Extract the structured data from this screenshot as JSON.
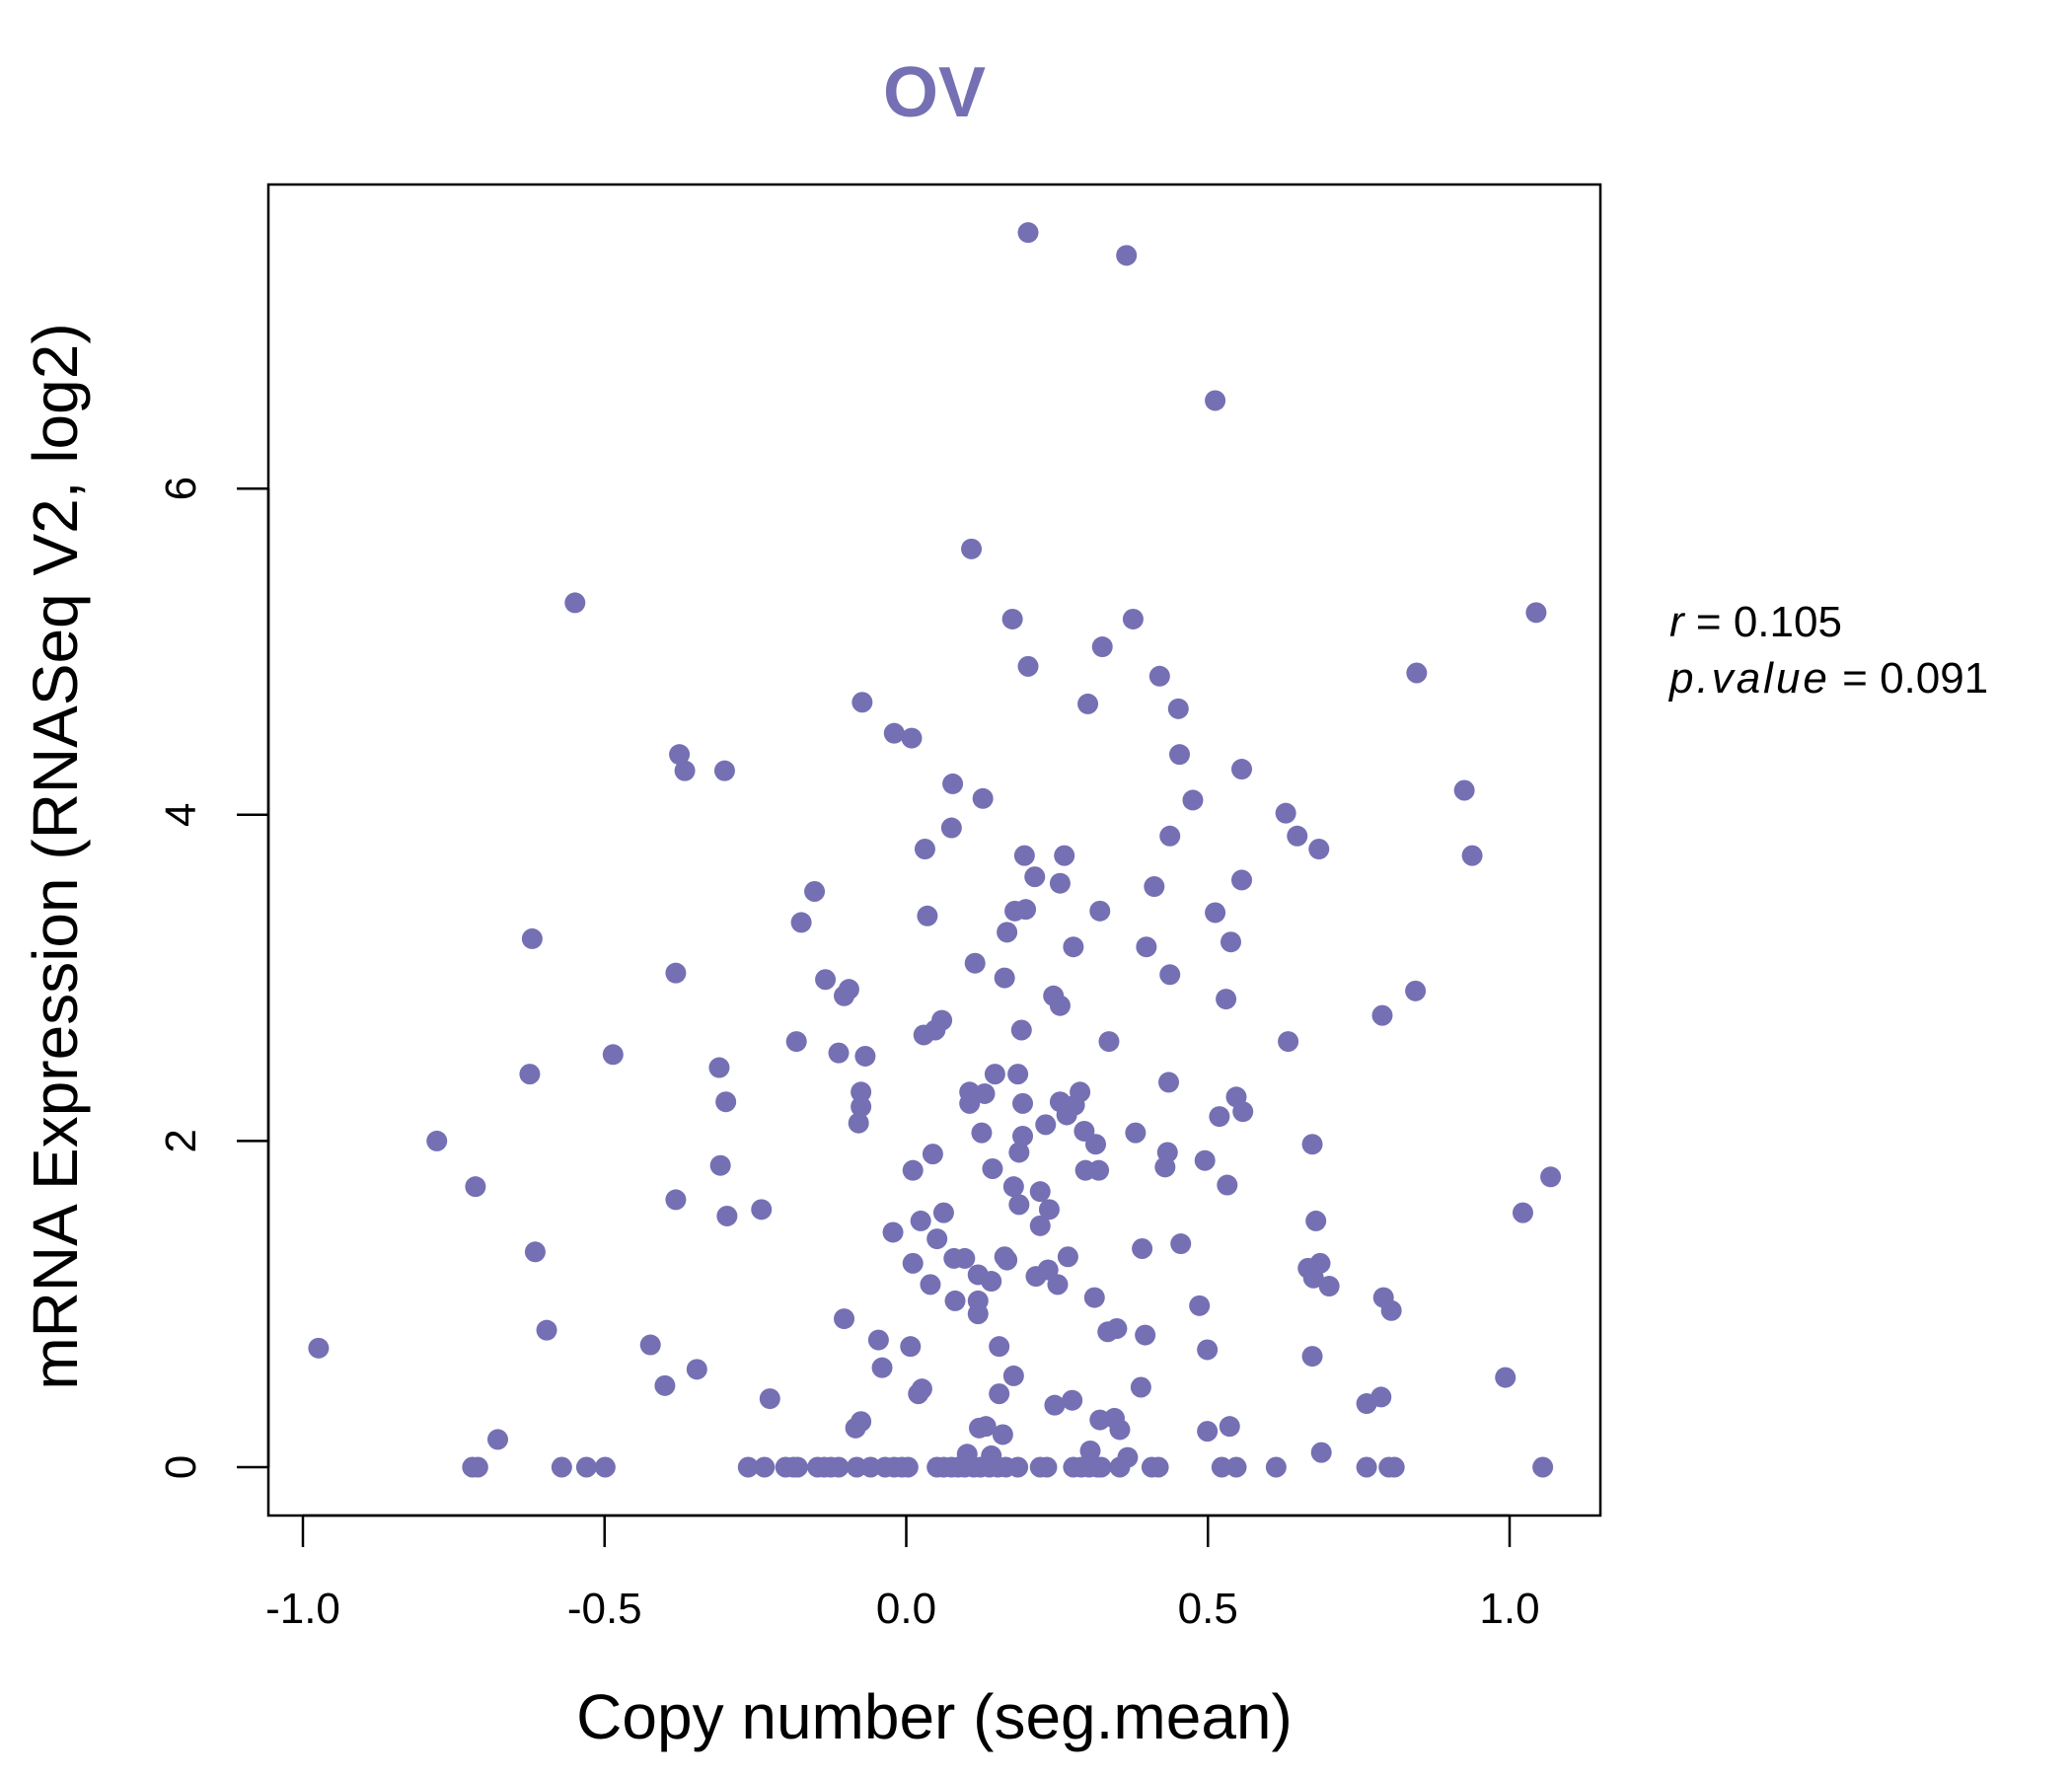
{
  "chart_data": {
    "type": "scatter",
    "title": "OV",
    "xlabel": "Copy number (seg.mean)",
    "ylabel": "mRNA Expression (RNASeq V2, log2)",
    "xlim": [
      -1.1,
      1.15
    ],
    "ylim": [
      -0.3,
      7.85
    ],
    "xticks": [
      -1.0,
      -0.5,
      0.0,
      0.5,
      1.0
    ],
    "xtick_labels": [
      "-1.0",
      "-0.5",
      "0.0",
      "0.5",
      "1.0"
    ],
    "yticks": [
      0,
      2,
      4,
      6
    ],
    "ytick_labels": [
      "0",
      "2",
      "4",
      "6"
    ],
    "grid": false,
    "point_color": "#7570b3",
    "annotation": {
      "r_label": "r",
      "r_value": "0.105",
      "p_label": "p.value",
      "p_value": "0.091",
      "eq": "="
    },
    "points": [
      [
        0.202,
        7.57
      ],
      [
        0.365,
        7.43
      ],
      [
        0.512,
        6.54
      ],
      [
        0.108,
        5.63
      ],
      [
        -0.549,
        5.3
      ],
      [
        0.176,
        5.2
      ],
      [
        0.376,
        5.2
      ],
      [
        1.044,
        5.24
      ],
      [
        0.325,
        5.03
      ],
      [
        0.202,
        4.91
      ],
      [
        0.846,
        4.87
      ],
      [
        0.42,
        4.85
      ],
      [
        -0.073,
        4.69
      ],
      [
        0.301,
        4.68
      ],
      [
        0.451,
        4.65
      ],
      [
        -0.02,
        4.5
      ],
      [
        0.009,
        4.47
      ],
      [
        -0.376,
        4.37
      ],
      [
        0.453,
        4.37
      ],
      [
        -0.367,
        4.27
      ],
      [
        -0.301,
        4.27
      ],
      [
        0.556,
        4.28
      ],
      [
        0.077,
        4.19
      ],
      [
        0.925,
        4.15
      ],
      [
        0.127,
        4.1
      ],
      [
        0.475,
        4.09
      ],
      [
        0.629,
        4.01
      ],
      [
        0.648,
        3.87
      ],
      [
        0.437,
        3.87
      ],
      [
        0.075,
        3.92
      ],
      [
        0.031,
        3.79
      ],
      [
        0.684,
        3.79
      ],
      [
        0.196,
        3.75
      ],
      [
        0.262,
        3.75
      ],
      [
        0.938,
        3.75
      ],
      [
        0.213,
        3.62
      ],
      [
        0.255,
        3.58
      ],
      [
        0.556,
        3.6
      ],
      [
        -0.152,
        3.53
      ],
      [
        0.411,
        3.56
      ],
      [
        -0.174,
        3.34
      ],
      [
        0.035,
        3.38
      ],
      [
        0.18,
        3.41
      ],
      [
        0.198,
        3.42
      ],
      [
        0.321,
        3.41
      ],
      [
        0.512,
        3.4
      ],
      [
        0.167,
        3.28
      ],
      [
        -0.62,
        3.24
      ],
      [
        0.538,
        3.22
      ],
      [
        0.277,
        3.19
      ],
      [
        0.398,
        3.19
      ],
      [
        0.114,
        3.09
      ],
      [
        -0.382,
        3.03
      ],
      [
        -0.134,
        2.99
      ],
      [
        0.163,
        3.0
      ],
      [
        0.437,
        3.02
      ],
      [
        -0.095,
        2.93
      ],
      [
        -0.103,
        2.89
      ],
      [
        0.844,
        2.92
      ],
      [
        0.244,
        2.89
      ],
      [
        0.255,
        2.83
      ],
      [
        0.53,
        2.87
      ],
      [
        0.059,
        2.74
      ],
      [
        0.048,
        2.68
      ],
      [
        0.029,
        2.65
      ],
      [
        0.191,
        2.68
      ],
      [
        0.789,
        2.77
      ],
      [
        -0.182,
        2.61
      ],
      [
        0.336,
        2.61
      ],
      [
        0.633,
        2.61
      ],
      [
        -0.486,
        2.53
      ],
      [
        -0.112,
        2.54
      ],
      [
        -0.068,
        2.52
      ],
      [
        -0.624,
        2.41
      ],
      [
        -0.31,
        2.45
      ],
      [
        0.147,
        2.41
      ],
      [
        0.185,
        2.41
      ],
      [
        0.435,
        2.36
      ],
      [
        -0.075,
        2.3
      ],
      [
        0.105,
        2.3
      ],
      [
        0.13,
        2.29
      ],
      [
        0.288,
        2.3
      ],
      [
        -0.299,
        2.24
      ],
      [
        0.105,
        2.23
      ],
      [
        0.193,
        2.23
      ],
      [
        0.255,
        2.24
      ],
      [
        0.279,
        2.22
      ],
      [
        0.547,
        2.27
      ],
      [
        -0.075,
        2.21
      ],
      [
        0.558,
        2.18
      ],
      [
        0.519,
        2.15
      ],
      [
        0.266,
        2.16
      ],
      [
        -0.079,
        2.11
      ],
      [
        0.231,
        2.1
      ],
      [
        0.125,
        2.05
      ],
      [
        0.295,
        2.06
      ],
      [
        0.38,
        2.05
      ],
      [
        -0.778,
        2.0
      ],
      [
        0.193,
        2.03
      ],
      [
        0.314,
        1.98
      ],
      [
        0.673,
        1.98
      ],
      [
        0.187,
        1.93
      ],
      [
        0.044,
        1.92
      ],
      [
        0.433,
        1.93
      ],
      [
        0.495,
        1.88
      ],
      [
        -0.308,
        1.85
      ],
      [
        0.429,
        1.84
      ],
      [
        0.143,
        1.83
      ],
      [
        0.297,
        1.82
      ],
      [
        0.319,
        1.82
      ],
      [
        1.068,
        1.78
      ],
      [
        0.011,
        1.82
      ],
      [
        -0.714,
        1.72
      ],
      [
        0.178,
        1.72
      ],
      [
        0.532,
        1.73
      ],
      [
        0.222,
        1.69
      ],
      [
        -0.382,
        1.64
      ],
      [
        0.187,
        1.61
      ],
      [
        0.237,
        1.58
      ],
      [
        -0.24,
        1.58
      ],
      [
        0.062,
        1.56
      ],
      [
        -0.297,
        1.54
      ],
      [
        1.022,
        1.56
      ],
      [
        0.679,
        1.51
      ],
      [
        0.024,
        1.51
      ],
      [
        0.222,
        1.48
      ],
      [
        -0.022,
        1.44
      ],
      [
        0.051,
        1.4
      ],
      [
        0.455,
        1.37
      ],
      [
        0.391,
        1.34
      ],
      [
        -0.615,
        1.32
      ],
      [
        0.079,
        1.28
      ],
      [
        0.097,
        1.28
      ],
      [
        0.167,
        1.27
      ],
      [
        0.163,
        1.29
      ],
      [
        0.268,
        1.29
      ],
      [
        0.011,
        1.25
      ],
      [
        0.686,
        1.25
      ],
      [
        0.666,
        1.22
      ],
      [
        0.235,
        1.21
      ],
      [
        0.119,
        1.18
      ],
      [
        0.215,
        1.17
      ],
      [
        0.675,
        1.16
      ],
      [
        0.141,
        1.14
      ],
      [
        0.04,
        1.12
      ],
      [
        0.251,
        1.12
      ],
      [
        0.701,
        1.11
      ],
      [
        0.312,
        1.04
      ],
      [
        0.791,
        1.04
      ],
      [
        0.119,
        1.02
      ],
      [
        0.081,
        1.02
      ],
      [
        0.486,
        0.99
      ],
      [
        0.804,
        0.96
      ],
      [
        0.119,
        0.94
      ],
      [
        -0.103,
        0.91
      ],
      [
        -0.596,
        0.84
      ],
      [
        0.349,
        0.85
      ],
      [
        0.334,
        0.83
      ],
      [
        0.396,
        0.81
      ],
      [
        -0.046,
        0.78
      ],
      [
        -0.974,
        0.73
      ],
      [
        -0.424,
        0.75
      ],
      [
        0.007,
        0.74
      ],
      [
        0.154,
        0.74
      ],
      [
        0.499,
        0.72
      ],
      [
        0.673,
        0.68
      ],
      [
        -0.347,
        0.6
      ],
      [
        -0.04,
        0.61
      ],
      [
        0.178,
        0.56
      ],
      [
        0.993,
        0.55
      ],
      [
        -0.4,
        0.5
      ],
      [
        0.389,
        0.49
      ],
      [
        0.026,
        0.48
      ],
      [
        0.154,
        0.45
      ],
      [
        0.02,
        0.45
      ],
      [
        0.787,
        0.43
      ],
      [
        -0.226,
        0.42
      ],
      [
        0.275,
        0.41
      ],
      [
        0.763,
        0.39
      ],
      [
        0.246,
        0.38
      ],
      [
        0.321,
        0.29
      ],
      [
        0.345,
        0.3
      ],
      [
        -0.075,
        0.28
      ],
      [
        -0.084,
        0.24
      ],
      [
        0.536,
        0.25
      ],
      [
        0.121,
        0.24
      ],
      [
        0.132,
        0.25
      ],
      [
        0.354,
        0.23
      ],
      [
        0.499,
        0.22
      ],
      [
        -0.677,
        0.17
      ],
      [
        0.16,
        0.2
      ],
      [
        0.305,
        0.1
      ],
      [
        0.688,
        0.09
      ],
      [
        0.367,
        0.06
      ],
      [
        0.101,
        0.08
      ],
      [
        0.141,
        0.07
      ],
      [
        -0.719,
        0
      ],
      [
        -0.71,
        0
      ],
      [
        -0.571,
        0
      ],
      [
        -0.53,
        0
      ],
      [
        -0.499,
        0
      ],
      [
        -0.262,
        0
      ],
      [
        -0.235,
        0
      ],
      [
        -0.2,
        0
      ],
      [
        -0.187,
        0
      ],
      [
        -0.18,
        0
      ],
      [
        -0.147,
        0
      ],
      [
        -0.136,
        0
      ],
      [
        -0.125,
        0
      ],
      [
        -0.112,
        0
      ],
      [
        -0.082,
        0
      ],
      [
        -0.059,
        0
      ],
      [
        -0.035,
        0
      ],
      [
        -0.02,
        0
      ],
      [
        -0.007,
        0
      ],
      [
        0.003,
        0
      ],
      [
        0.051,
        0
      ],
      [
        0.062,
        0
      ],
      [
        0.075,
        0
      ],
      [
        0.086,
        0
      ],
      [
        0.097,
        0
      ],
      [
        0.112,
        0
      ],
      [
        0.123,
        0
      ],
      [
        0.138,
        0
      ],
      [
        0.152,
        0
      ],
      [
        0.165,
        0
      ],
      [
        0.185,
        0
      ],
      [
        0.222,
        0
      ],
      [
        0.233,
        0
      ],
      [
        0.277,
        0
      ],
      [
        0.29,
        0
      ],
      [
        0.303,
        0
      ],
      [
        0.317,
        0
      ],
      [
        0.323,
        0
      ],
      [
        0.354,
        0
      ],
      [
        0.407,
        0
      ],
      [
        0.418,
        0
      ],
      [
        0.523,
        0
      ],
      [
        0.547,
        0
      ],
      [
        0.613,
        0
      ],
      [
        0.763,
        0
      ],
      [
        0.8,
        0
      ],
      [
        0.809,
        0
      ],
      [
        1.055,
        0
      ]
    ]
  }
}
